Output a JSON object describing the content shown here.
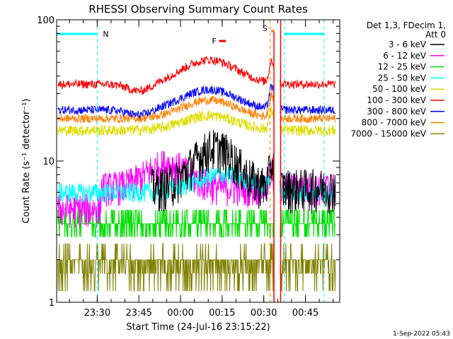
{
  "chart_data": {
    "type": "line",
    "title": "RHESSI Observing Summary Count Rates",
    "xlabel": "Start Time (24-Jul-16 23:15:22)",
    "ylabel": "Count Rate (s⁻¹ detector⁻¹)",
    "yscale": "log",
    "ylim": [
      1,
      100
    ],
    "yticks": [
      "1",
      "10",
      "100"
    ],
    "xlim_min": [
      0,
      102
    ],
    "xticks": [
      {
        "label": "23:30",
        "min": 14.63
      },
      {
        "label": "23:45",
        "min": 29.63
      },
      {
        "label": "00:00",
        "min": 44.63
      },
      {
        "label": "00:15",
        "min": 59.63
      },
      {
        "label": "00:30",
        "min": 74.63
      },
      {
        "label": "00:45",
        "min": 89.63
      }
    ],
    "legend": {
      "position": "top-right",
      "header": [
        "Det 1,3, FDecim 1,",
        "Att 0"
      ]
    },
    "series": [
      {
        "name": "3 - 6 keV",
        "color": "#000000"
      },
      {
        "name": "6 - 12 keV",
        "color": "#ff00ff"
      },
      {
        "name": "12 - 25 keV",
        "color": "#00dd00"
      },
      {
        "name": "25 - 50 keV",
        "color": "#00ffff"
      },
      {
        "name": "50 - 100 keV",
        "color": "#dddd00"
      },
      {
        "name": "100 - 300 keV",
        "color": "#ff0000"
      },
      {
        "name": "300 - 800 keV",
        "color": "#0000ff"
      },
      {
        "name": "800 - 7000 keV",
        "color": "#ff8000"
      },
      {
        "name": "7000 - 15000 keV",
        "color": "#808000"
      }
    ],
    "annotations": {
      "N": {
        "label": "N",
        "color": "#00ffff"
      },
      "F": {
        "label": "F",
        "color": "#ff0000"
      },
      "S": {
        "label": "S",
        "color": "#ff8000"
      }
    }
  },
  "footer_timestamp": "1-Sep-2022 05:43"
}
